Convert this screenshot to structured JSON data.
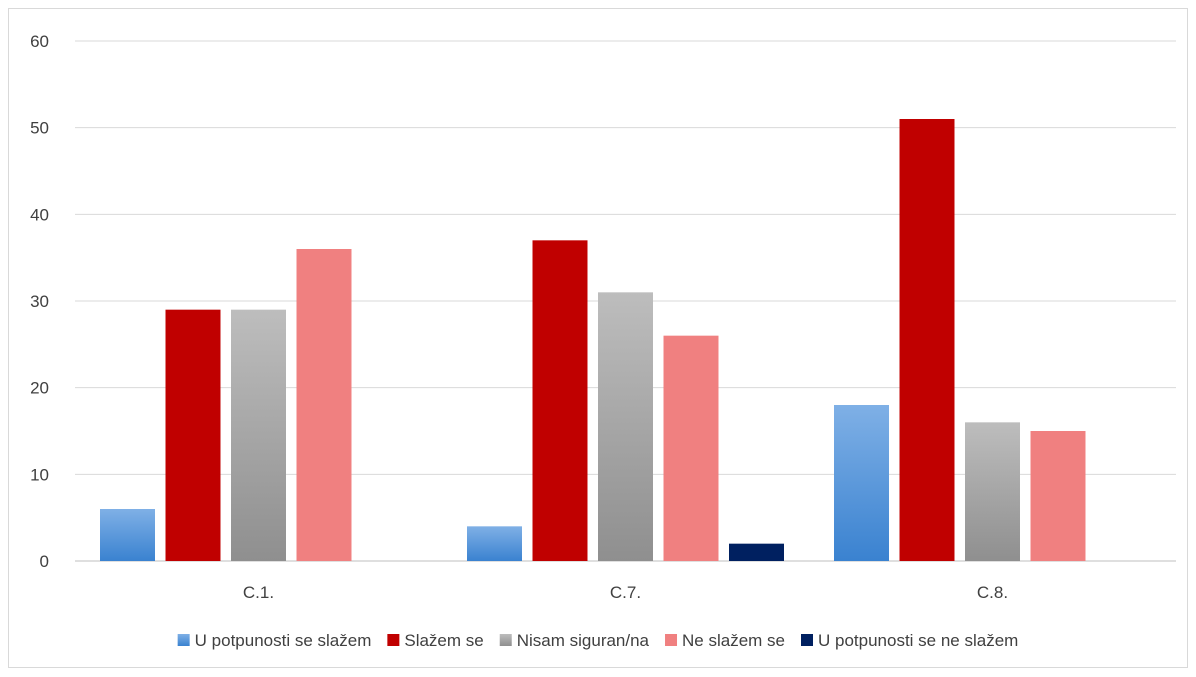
{
  "chart_data": {
    "type": "bar",
    "categories": [
      "C.1.",
      "C.7.",
      "C.8."
    ],
    "series": [
      {
        "name": "U potpunosti se slažem",
        "values": [
          6,
          4,
          18
        ]
      },
      {
        "name": "Slažem se",
        "values": [
          29,
          37,
          51
        ]
      },
      {
        "name": "Nisam siguran/na",
        "values": [
          29,
          31,
          16
        ]
      },
      {
        "name": "Ne slažem se",
        "values": [
          36,
          26,
          15
        ]
      },
      {
        "name": "U potpunosti se ne slažem",
        "values": [
          0,
          2,
          0
        ]
      }
    ],
    "ylim": [
      0,
      60
    ],
    "yticks": [
      0,
      10,
      20,
      30,
      40,
      50,
      60
    ],
    "grid": true,
    "legend_position": "bottom",
    "colors": [
      "#4a8fd6",
      "#c00000",
      "#a6a6a6",
      "#f08080",
      "#002060"
    ]
  }
}
